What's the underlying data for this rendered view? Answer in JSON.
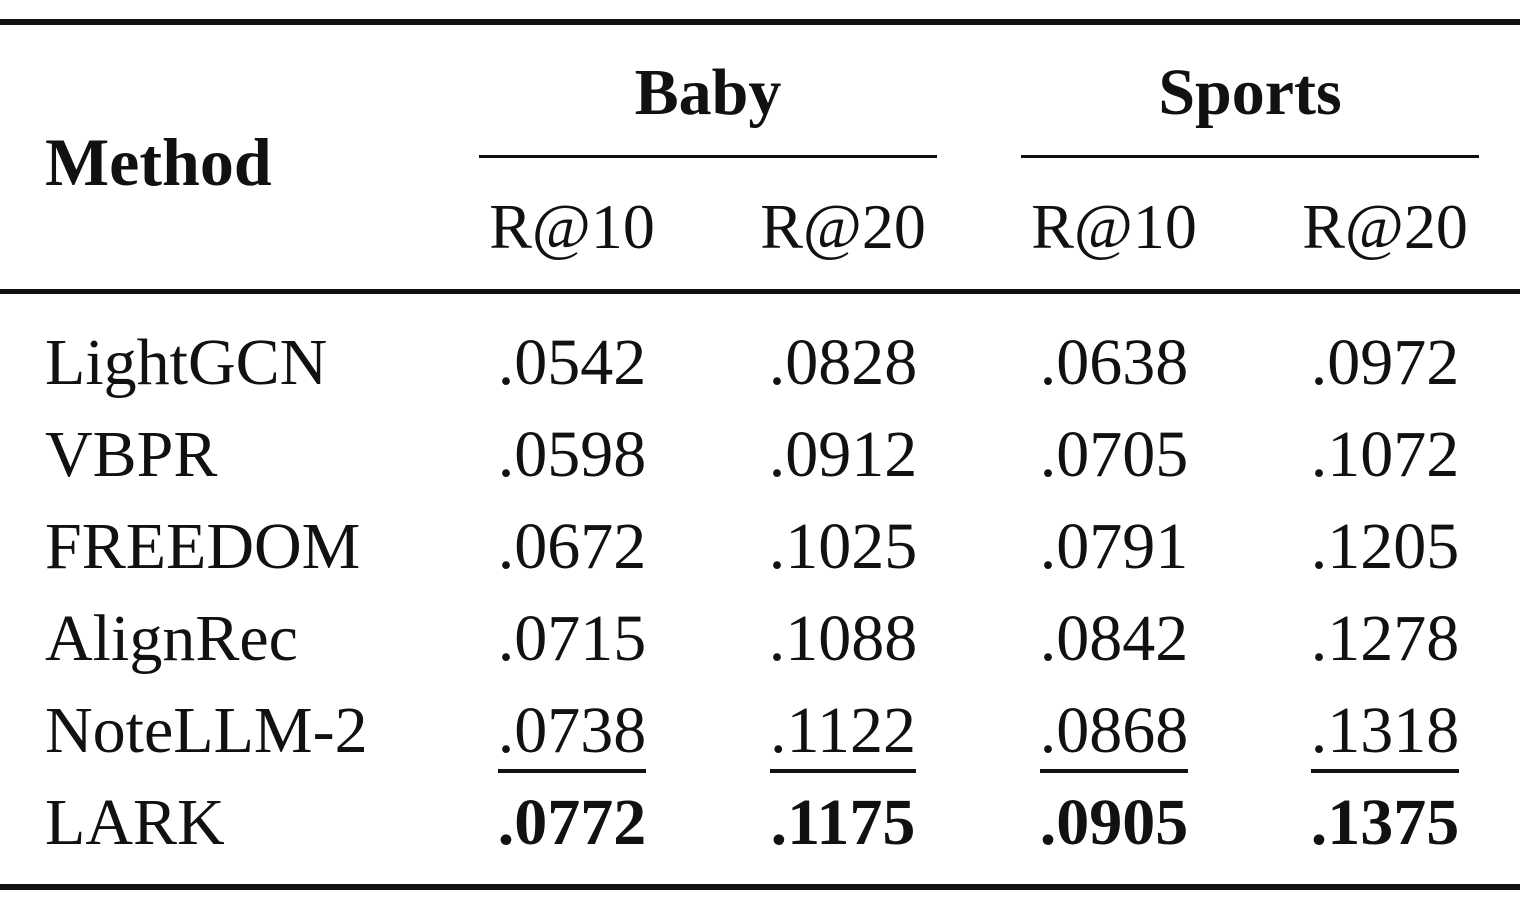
{
  "header": {
    "method": "Method",
    "groups": [
      "Baby",
      "Sports"
    ],
    "metrics": [
      "R@10",
      "R@20",
      "R@10",
      "R@20"
    ]
  },
  "rows": [
    {
      "method": "LightGCN",
      "values": [
        ".0542",
        ".0828",
        ".0638",
        ".0972"
      ],
      "style": "normal"
    },
    {
      "method": "VBPR",
      "values": [
        ".0598",
        ".0912",
        ".0705",
        ".1072"
      ],
      "style": "normal"
    },
    {
      "method": "FREEDOM",
      "values": [
        ".0672",
        ".1025",
        ".0791",
        ".1205"
      ],
      "style": "normal"
    },
    {
      "method": "AlignRec",
      "values": [
        ".0715",
        ".1088",
        ".0842",
        ".1278"
      ],
      "style": "normal"
    },
    {
      "method": "NoteLLM-2",
      "values": [
        ".0738",
        ".1122",
        ".0868",
        ".1318"
      ],
      "style": "underline"
    },
    {
      "method": "LARK",
      "values": [
        ".0772",
        ".1175",
        ".0905",
        ".1375"
      ],
      "style": "bold"
    }
  ]
}
